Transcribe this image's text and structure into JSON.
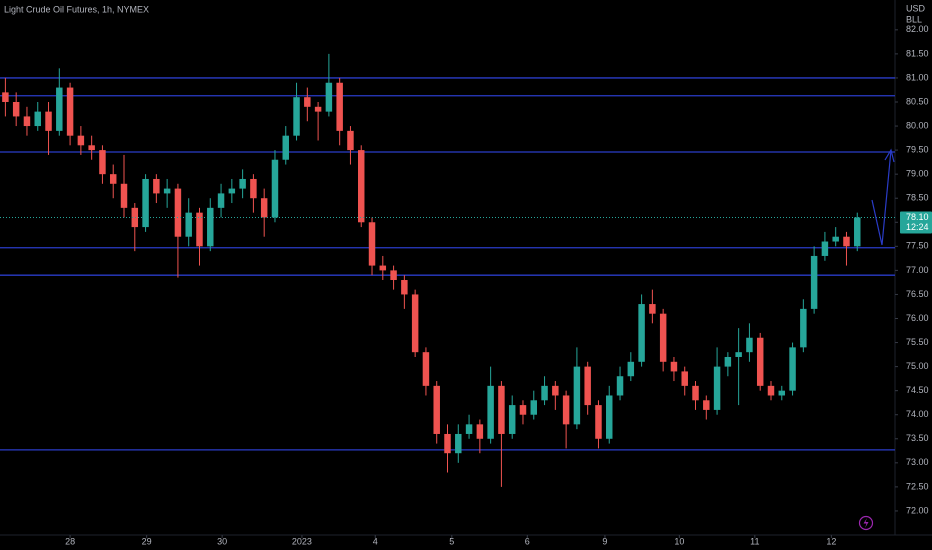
{
  "chart_data": {
    "type": "candlestick",
    "title": "Light Crude Oil Futures, 1h, NYMEX",
    "currency": "USD",
    "unit": "BLL",
    "up_color": "#26a69a",
    "down_color": "#ef5350",
    "xlim": [
      -0.5,
      82.5
    ],
    "xticks": [
      {
        "value": 6.0,
        "label": "28"
      },
      {
        "value": 13.1,
        "label": "29"
      },
      {
        "value": 20.1,
        "label": "30"
      },
      {
        "value": 27.5,
        "label": "2023"
      },
      {
        "value": 34.3,
        "label": "4"
      },
      {
        "value": 41.4,
        "label": "5"
      },
      {
        "value": 48.4,
        "label": "6"
      },
      {
        "value": 55.6,
        "label": "9"
      },
      {
        "value": 62.5,
        "label": "10"
      },
      {
        "value": 69.5,
        "label": "11"
      },
      {
        "value": 76.6,
        "label": "12"
      }
    ],
    "ylim": [
      71.5,
      82.62
    ],
    "yticks": [
      {
        "value": 72,
        "label": "72.00"
      },
      {
        "value": 72.5,
        "label": "72.50"
      },
      {
        "value": 73,
        "label": "73.00"
      },
      {
        "value": 73.5,
        "label": "73.50"
      },
      {
        "value": 74,
        "label": "74.00"
      },
      {
        "value": 74.5,
        "label": "74.50"
      },
      {
        "value": 75,
        "label": "75.00"
      },
      {
        "value": 75.5,
        "label": "75.50"
      },
      {
        "value": 76,
        "label": "76.00"
      },
      {
        "value": 76.5,
        "label": "76.50"
      },
      {
        "value": 77,
        "label": "77.00"
      },
      {
        "value": 77.5,
        "label": "77.50"
      },
      {
        "value": 78,
        "label": "78.00"
      },
      {
        "value": 78.5,
        "label": "78.50"
      },
      {
        "value": 79,
        "label": "79.00"
      },
      {
        "value": 79.5,
        "label": "79.50"
      },
      {
        "value": 80,
        "label": "80.00"
      },
      {
        "value": 80.5,
        "label": "80.50"
      },
      {
        "value": 81,
        "label": "81.00"
      },
      {
        "value": 81.5,
        "label": "81.50"
      },
      {
        "value": 82,
        "label": "82.00"
      }
    ],
    "levels": [
      81.0,
      80.63,
      79.46,
      77.47,
      76.9,
      73.27
    ],
    "level_color": "#2a3cc8",
    "last_price": {
      "value": 78.1,
      "label": "78.10"
    },
    "countdown": "12:24",
    "open": [
      80.7,
      80.5,
      80.2,
      80.0,
      80.3,
      79.9,
      80.8,
      79.8,
      79.6,
      79.5,
      79.0,
      78.8,
      78.3,
      77.9,
      78.9,
      78.6,
      78.7,
      77.7,
      78.2,
      77.5,
      78.3,
      78.6,
      78.7,
      78.9,
      78.5,
      78.1,
      79.3,
      79.8,
      80.6,
      80.4,
      80.3,
      80.9,
      79.9,
      79.5,
      78.0,
      77.1,
      77.0,
      76.8,
      76.5,
      75.3,
      74.6,
      73.6,
      73.2,
      73.6,
      73.8,
      73.5,
      74.6,
      73.6,
      74.2,
      74.0,
      74.3,
      74.6,
      74.4,
      73.8,
      75.0,
      74.2,
      73.5,
      74.4,
      74.8,
      75.1,
      76.3,
      76.1,
      75.1,
      74.9,
      74.6,
      74.3,
      74.1,
      75.0,
      75.2,
      75.3,
      75.6,
      74.6,
      74.4,
      74.5,
      75.4,
      76.2,
      77.3,
      77.6,
      77.7,
      77.5
    ],
    "high": [
      81.0,
      80.7,
      80.4,
      80.5,
      80.5,
      81.2,
      80.9,
      80.0,
      79.8,
      79.6,
      79.2,
      79.4,
      78.4,
      79.0,
      79.0,
      78.9,
      78.8,
      78.5,
      78.3,
      78.5,
      78.8,
      78.9,
      79.1,
      79.0,
      78.7,
      79.5,
      80.0,
      80.9,
      80.8,
      80.5,
      81.5,
      81.0,
      80.0,
      79.6,
      78.1,
      77.3,
      77.1,
      76.9,
      76.6,
      75.4,
      74.7,
      73.8,
      73.8,
      74.0,
      73.9,
      75.0,
      74.7,
      74.4,
      74.3,
      74.5,
      74.8,
      74.7,
      74.5,
      75.4,
      75.1,
      74.3,
      74.6,
      75.0,
      75.3,
      76.5,
      76.6,
      76.2,
      75.2,
      75.0,
      74.7,
      74.4,
      75.4,
      75.3,
      75.8,
      75.9,
      75.7,
      74.7,
      74.6,
      75.5,
      76.4,
      77.5,
      77.8,
      77.9,
      77.8,
      78.2
    ],
    "low": [
      80.2,
      80.0,
      79.8,
      79.9,
      79.4,
      79.8,
      79.6,
      79.4,
      79.3,
      78.8,
      78.5,
      78.1,
      77.4,
      77.8,
      78.4,
      78.3,
      76.85,
      77.5,
      77.1,
      77.4,
      78.1,
      78.4,
      78.5,
      78.2,
      77.7,
      78.0,
      79.2,
      79.7,
      80.1,
      79.7,
      80.2,
      79.6,
      79.2,
      77.9,
      76.9,
      76.8,
      76.6,
      76.2,
      75.2,
      74.4,
      73.4,
      72.8,
      73.0,
      73.5,
      73.2,
      73.4,
      72.5,
      73.5,
      73.8,
      73.9,
      74.2,
      74.1,
      73.3,
      73.7,
      74.0,
      73.3,
      73.4,
      74.3,
      74.7,
      75.0,
      75.9,
      74.9,
      74.7,
      74.4,
      74.1,
      73.9,
      74.0,
      74.8,
      74.2,
      75.1,
      74.5,
      74.3,
      74.3,
      74.4,
      75.3,
      76.1,
      77.2,
      77.5,
      77.1,
      77.4
    ],
    "close": [
      80.5,
      80.2,
      80.0,
      80.3,
      79.9,
      80.8,
      79.8,
      79.6,
      79.5,
      79.0,
      78.8,
      78.3,
      77.9,
      78.9,
      78.6,
      78.7,
      77.7,
      78.2,
      77.5,
      78.3,
      78.6,
      78.7,
      78.9,
      78.5,
      78.1,
      79.3,
      79.8,
      80.6,
      80.4,
      80.3,
      80.9,
      79.9,
      79.5,
      78.0,
      77.1,
      77.0,
      76.8,
      76.5,
      75.3,
      74.6,
      73.6,
      73.2,
      73.6,
      73.8,
      73.5,
      74.6,
      73.6,
      74.2,
      74.0,
      74.3,
      74.6,
      74.4,
      73.8,
      75.0,
      74.2,
      73.5,
      74.4,
      74.8,
      75.1,
      76.3,
      76.1,
      75.1,
      74.9,
      74.6,
      74.3,
      74.1,
      75.0,
      75.2,
      75.3,
      75.6,
      74.6,
      74.4,
      74.5,
      75.4,
      76.2,
      77.3,
      77.6,
      77.7,
      77.5,
      78.1
    ]
  }
}
